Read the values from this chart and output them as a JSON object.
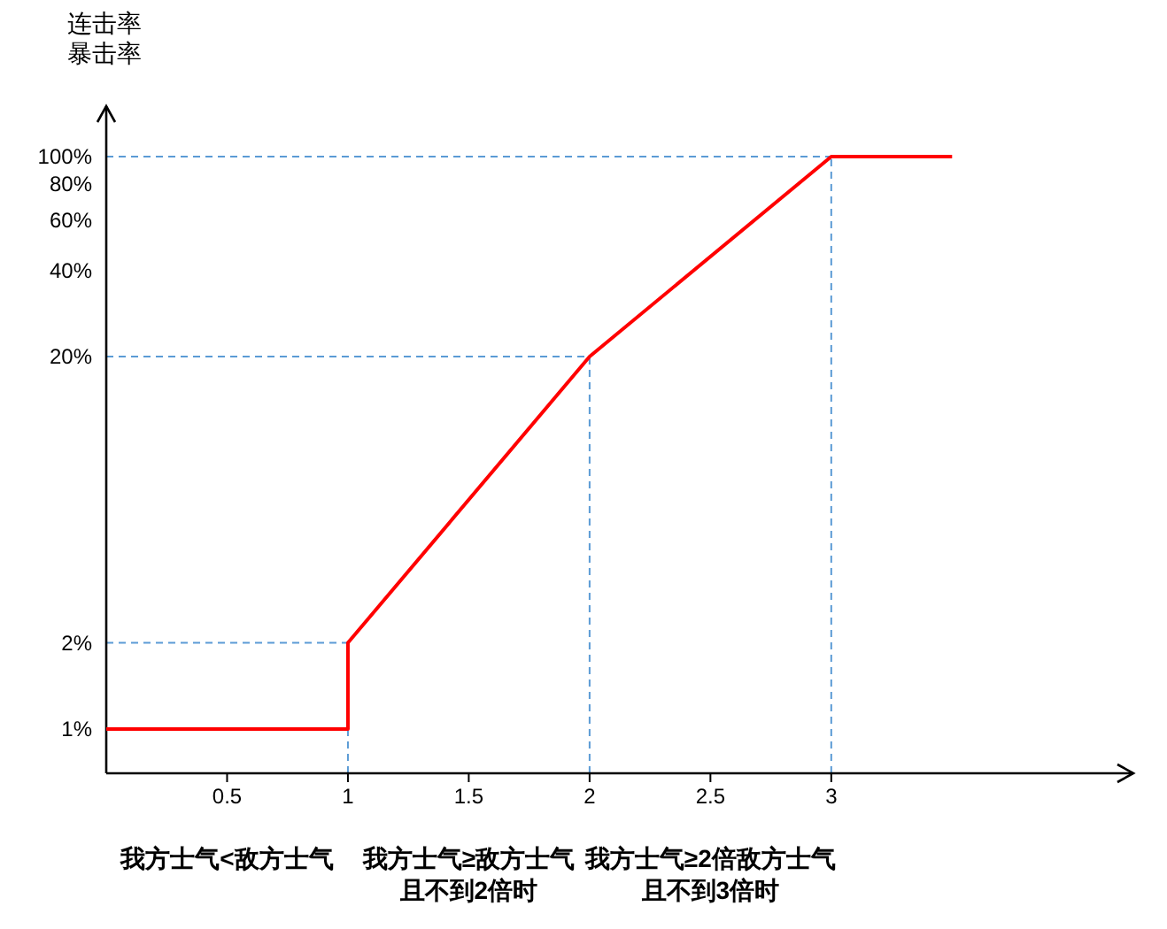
{
  "chart_data": {
    "type": "line",
    "ylabel": "连击率暴击率",
    "log": "y",
    "x": [
      0,
      1,
      1,
      2,
      3,
      3.5
    ],
    "series": [
      {
        "color": "#ff0000",
        "values": [
          1,
          1,
          2,
          20,
          100,
          100
        ]
      }
    ],
    "xlim": [
      0,
      4.25
    ],
    "xticks": [
      0.5,
      1,
      1.5,
      2,
      2.5,
      3
    ],
    "ylim": [
      0.7,
      150
    ],
    "yticks": [
      {
        "value": 1,
        "label": "1%"
      },
      {
        "value": 2,
        "label": "2%"
      },
      {
        "value": 20,
        "label": "20%"
      },
      {
        "value": 40,
        "label": "40%"
      },
      {
        "value": 60,
        "label": "60%"
      },
      {
        "value": 80,
        "label": "80%"
      },
      {
        "value": 100,
        "label": "100%"
      }
    ],
    "ref_lines": [
      {
        "axis": "y",
        "value": 2,
        "color": "#5b9bd5",
        "line_style": "dashed"
      },
      {
        "axis": "y",
        "value": 20,
        "color": "#5b9bd5",
        "line_style": "dashed"
      },
      {
        "axis": "y",
        "value": 100,
        "color": "#5b9bd5",
        "line_style": "dashed"
      },
      {
        "axis": "x",
        "value": 1,
        "color": "#5b9bd5",
        "line_style": "dashed"
      },
      {
        "axis": "x",
        "value": 2,
        "color": "#5b9bd5",
        "line_style": "dashed"
      },
      {
        "axis": "x",
        "value": 3,
        "color": "#5b9bd5",
        "line_style": "dashed"
      }
    ],
    "annotations": [
      "我方士气<敌方士气",
      "我方士气≥敌方士气",
      "我方士气≥2倍敌方士气",
      "且不到2倍时",
      "且不到3倍时"
    ],
    "grid": false,
    "marker": "none",
    "line_style": "solid"
  }
}
